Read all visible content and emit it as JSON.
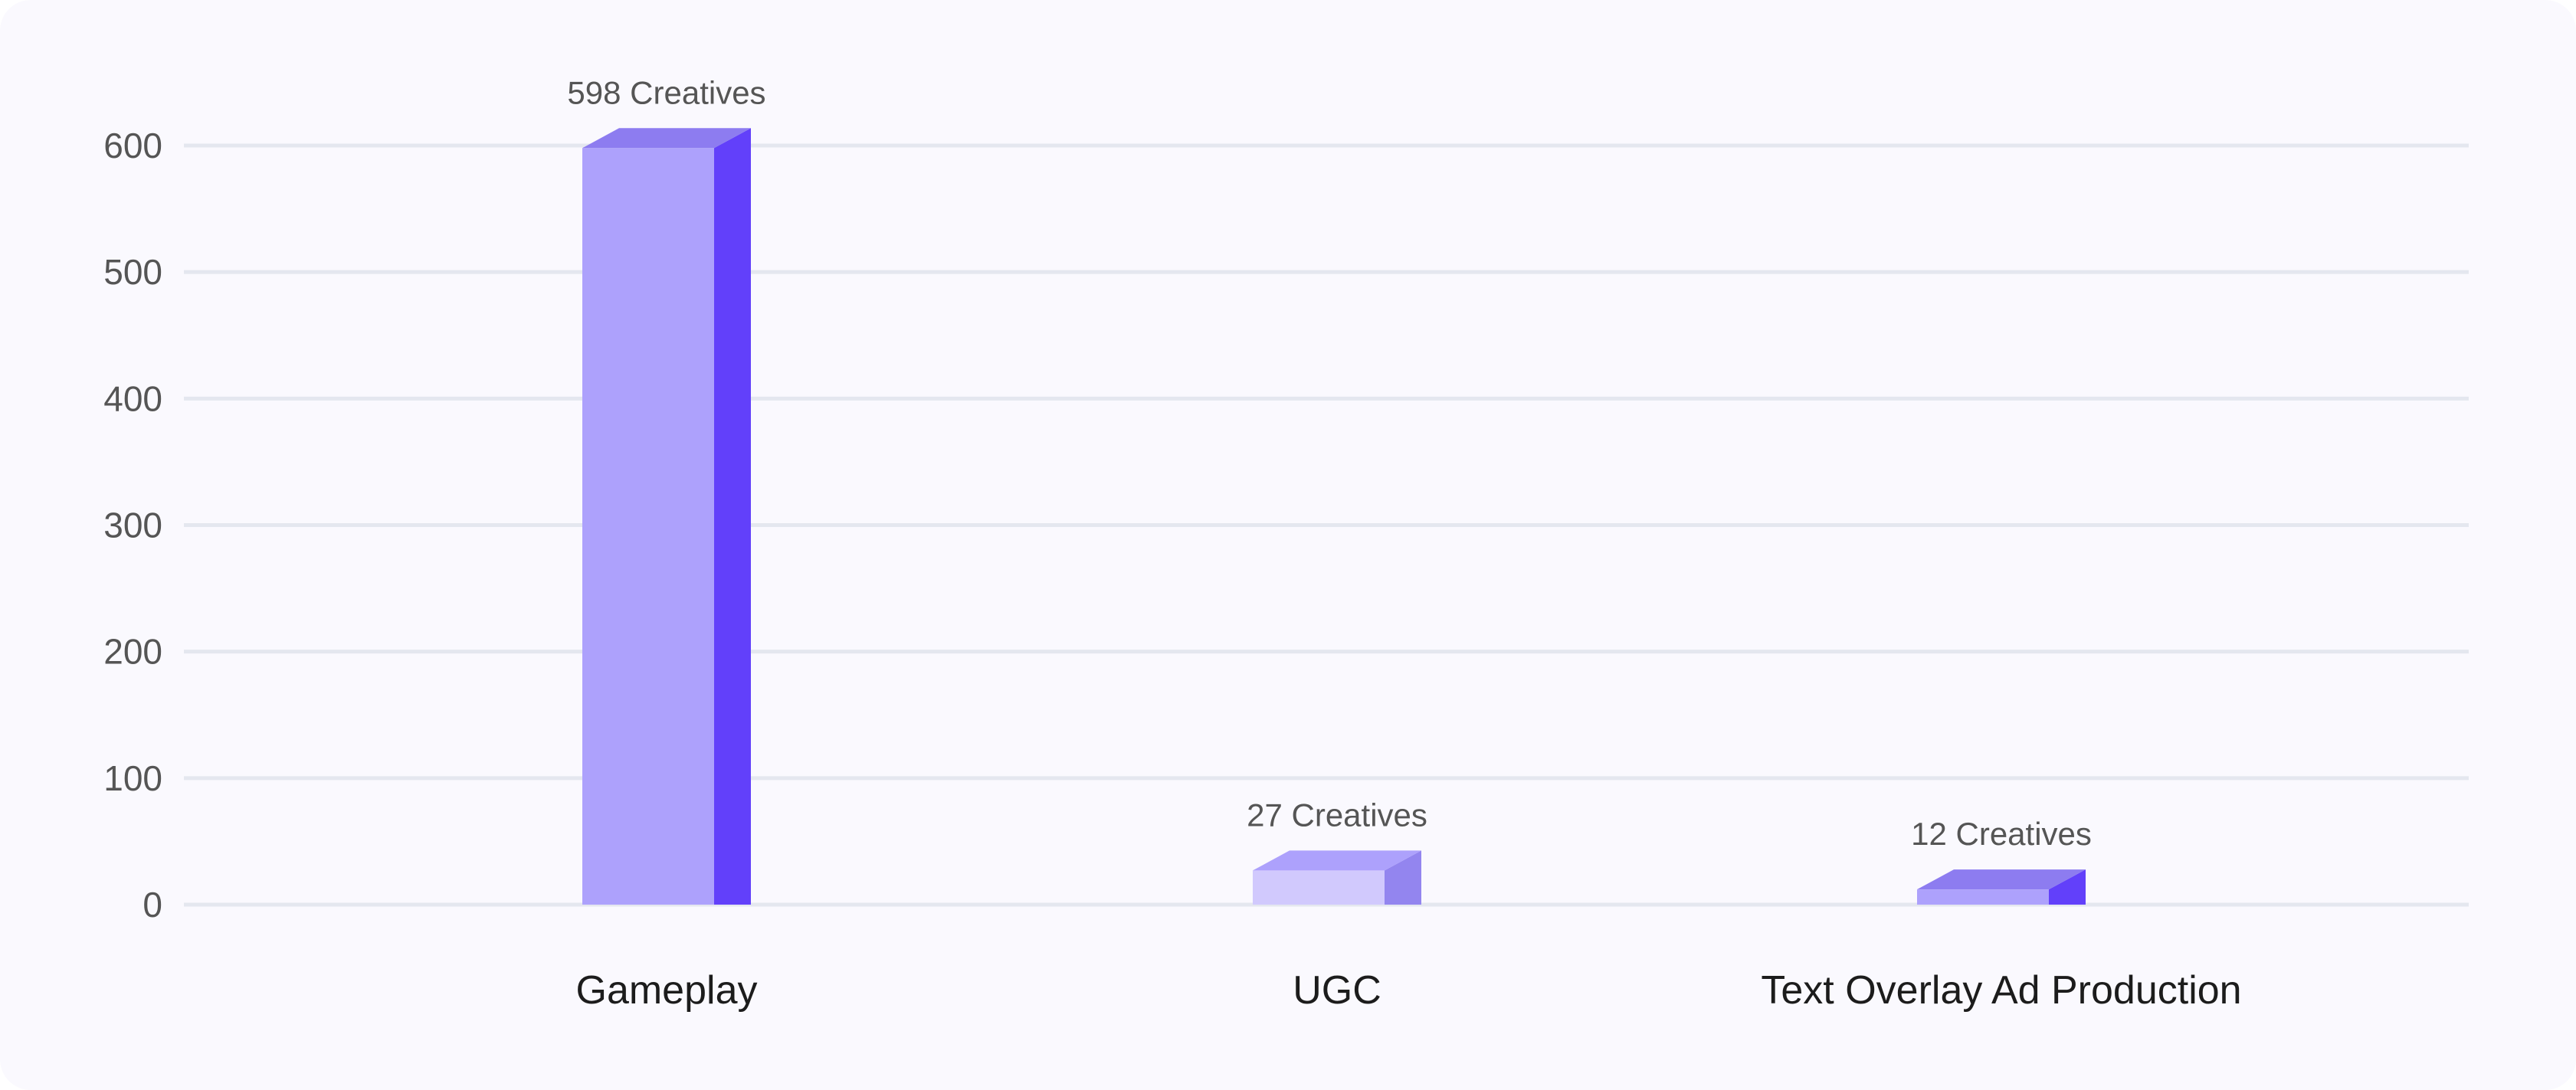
{
  "chart_data": {
    "type": "bar",
    "categories": [
      "Gameplay",
      "UGC",
      "Text Overlay Ad Production"
    ],
    "values": [
      598,
      27,
      12
    ],
    "data_labels": [
      "598 Creatives",
      "27 Creatives",
      "12 Creatives"
    ],
    "y_ticks": [
      0,
      100,
      200,
      300,
      400,
      500,
      600
    ],
    "ylim": [
      0,
      600
    ],
    "grid": true,
    "bar_style": "3d",
    "colors": [
      {
        "front": "#ada1fc",
        "side": "#6240fa",
        "top": "#8d7cf0"
      },
      {
        "front": "#d1c9fd",
        "side": "#9385ef",
        "top": "#ada1fc"
      },
      {
        "front": "#ada1fc",
        "side": "#6240fa",
        "top": "#8d7cf0"
      }
    ],
    "grid_color": "#e4e7ef"
  }
}
